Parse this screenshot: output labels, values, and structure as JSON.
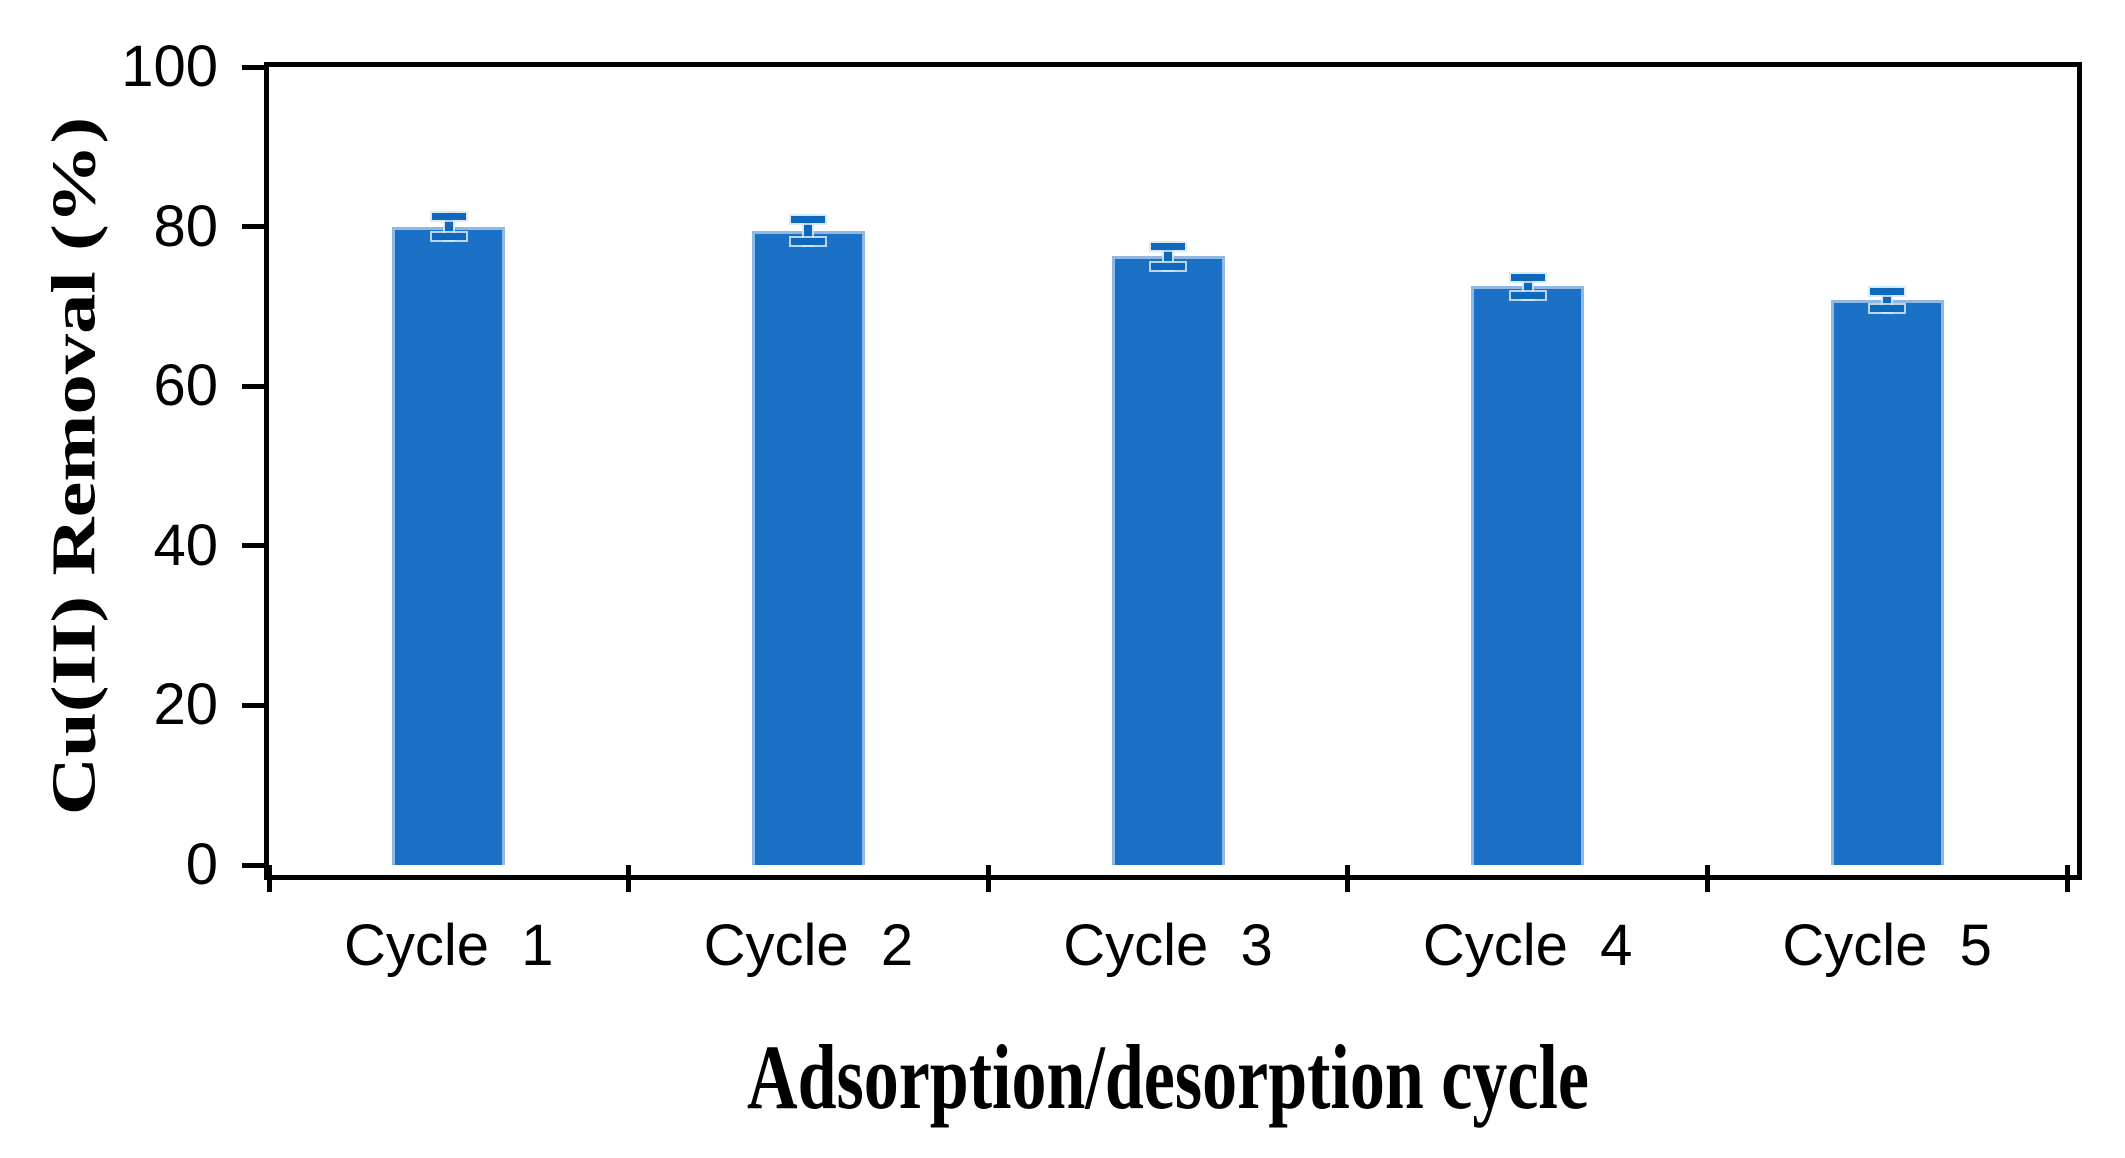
{
  "chart_data": {
    "type": "bar",
    "title": "",
    "categories": [
      "Cycle  1",
      "Cycle  2",
      "Cycle  3",
      "Cycle  4",
      "Cycle  5"
    ],
    "values": [
      80.0,
      79.5,
      76.3,
      72.5,
      70.8
    ],
    "errors": [
      1.7,
      1.8,
      1.7,
      1.6,
      1.5
    ],
    "xlabel": "Adsorption/desorption cycle",
    "ylabel": "Cu(II) Removal (%)",
    "ylim": [
      0,
      100
    ],
    "yticks": [
      0,
      20,
      40,
      60,
      80,
      100
    ],
    "grid": false,
    "legend": "none",
    "colors": {
      "bar_fill": "#1B71C6",
      "bar_border": "#8FB8E2",
      "error_bar": "#0E68BC",
      "axis": "#000000",
      "background": "#FFFFFF",
      "text": "#000000"
    }
  }
}
